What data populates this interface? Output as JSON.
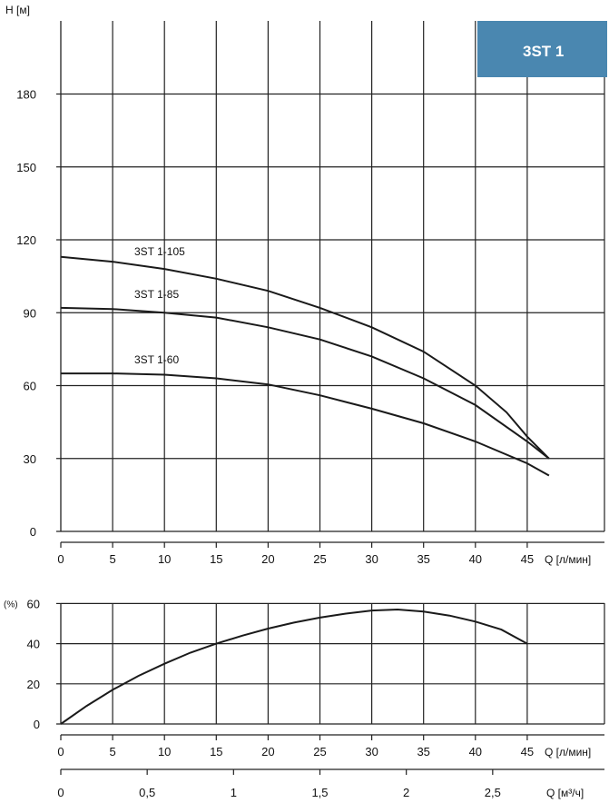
{
  "badge": {
    "text": "3ST 1",
    "color": "#4a87b0"
  },
  "chart_data": [
    {
      "type": "line",
      "ylabel": "H [м]",
      "xlabel": "Q [л/мин]",
      "xlim": [
        0,
        47.5
      ],
      "ylim": [
        0,
        200
      ],
      "xticks": [
        0,
        5,
        10,
        15,
        20,
        25,
        30,
        35,
        40,
        45
      ],
      "yticks": [
        0,
        30,
        60,
        90,
        120,
        150,
        180
      ],
      "grid": true,
      "series": [
        {
          "name": "3ST 1-105",
          "x": [
            0,
            5,
            10,
            15,
            20,
            25,
            30,
            35,
            40,
            43,
            45,
            47.1
          ],
          "y": [
            113,
            111,
            108,
            104,
            99,
            92,
            84,
            74,
            60,
            49,
            39,
            30
          ]
        },
        {
          "name": "3ST 1-85",
          "x": [
            0,
            5,
            10,
            15,
            20,
            25,
            30,
            35,
            40,
            45,
            47.1
          ],
          "y": [
            92,
            91.5,
            90,
            88,
            84,
            79,
            72,
            63,
            52,
            37,
            30
          ]
        },
        {
          "name": "3ST 1-60",
          "x": [
            0,
            5,
            10,
            15,
            20,
            25,
            30,
            35,
            40,
            45,
            47.1
          ],
          "y": [
            65,
            65,
            64.5,
            63,
            60.5,
            56,
            50.5,
            44.5,
            37,
            28,
            23
          ]
        }
      ]
    },
    {
      "type": "line",
      "ylabel": "(%)",
      "xlabel": "Q [л/мин]",
      "xlim": [
        0,
        47.5
      ],
      "ylim": [
        0,
        60
      ],
      "xticks": [
        0,
        5,
        10,
        15,
        20,
        25,
        30,
        35,
        40,
        45
      ],
      "yticks": [
        0,
        20,
        40,
        60
      ],
      "grid": true,
      "series": [
        {
          "name": "",
          "x": [
            0,
            2.5,
            5,
            7.5,
            10,
            12.5,
            15,
            17.5,
            20,
            22.5,
            25,
            27.5,
            30,
            32.5,
            35,
            37.5,
            40,
            42.5,
            45
          ],
          "y": [
            0,
            9,
            17,
            24,
            30,
            35.5,
            40,
            44,
            47.5,
            50.5,
            53,
            55,
            56.5,
            57,
            56,
            54,
            51,
            47,
            40
          ]
        }
      ],
      "secondary_x": {
        "label": "Q [м³/ч]",
        "ticks": [
          0,
          0.5,
          1,
          1.5,
          2,
          2.5
        ],
        "tick_labels": [
          "0",
          "0,5",
          "1",
          "1,5",
          "2",
          "2,5"
        ]
      }
    }
  ]
}
